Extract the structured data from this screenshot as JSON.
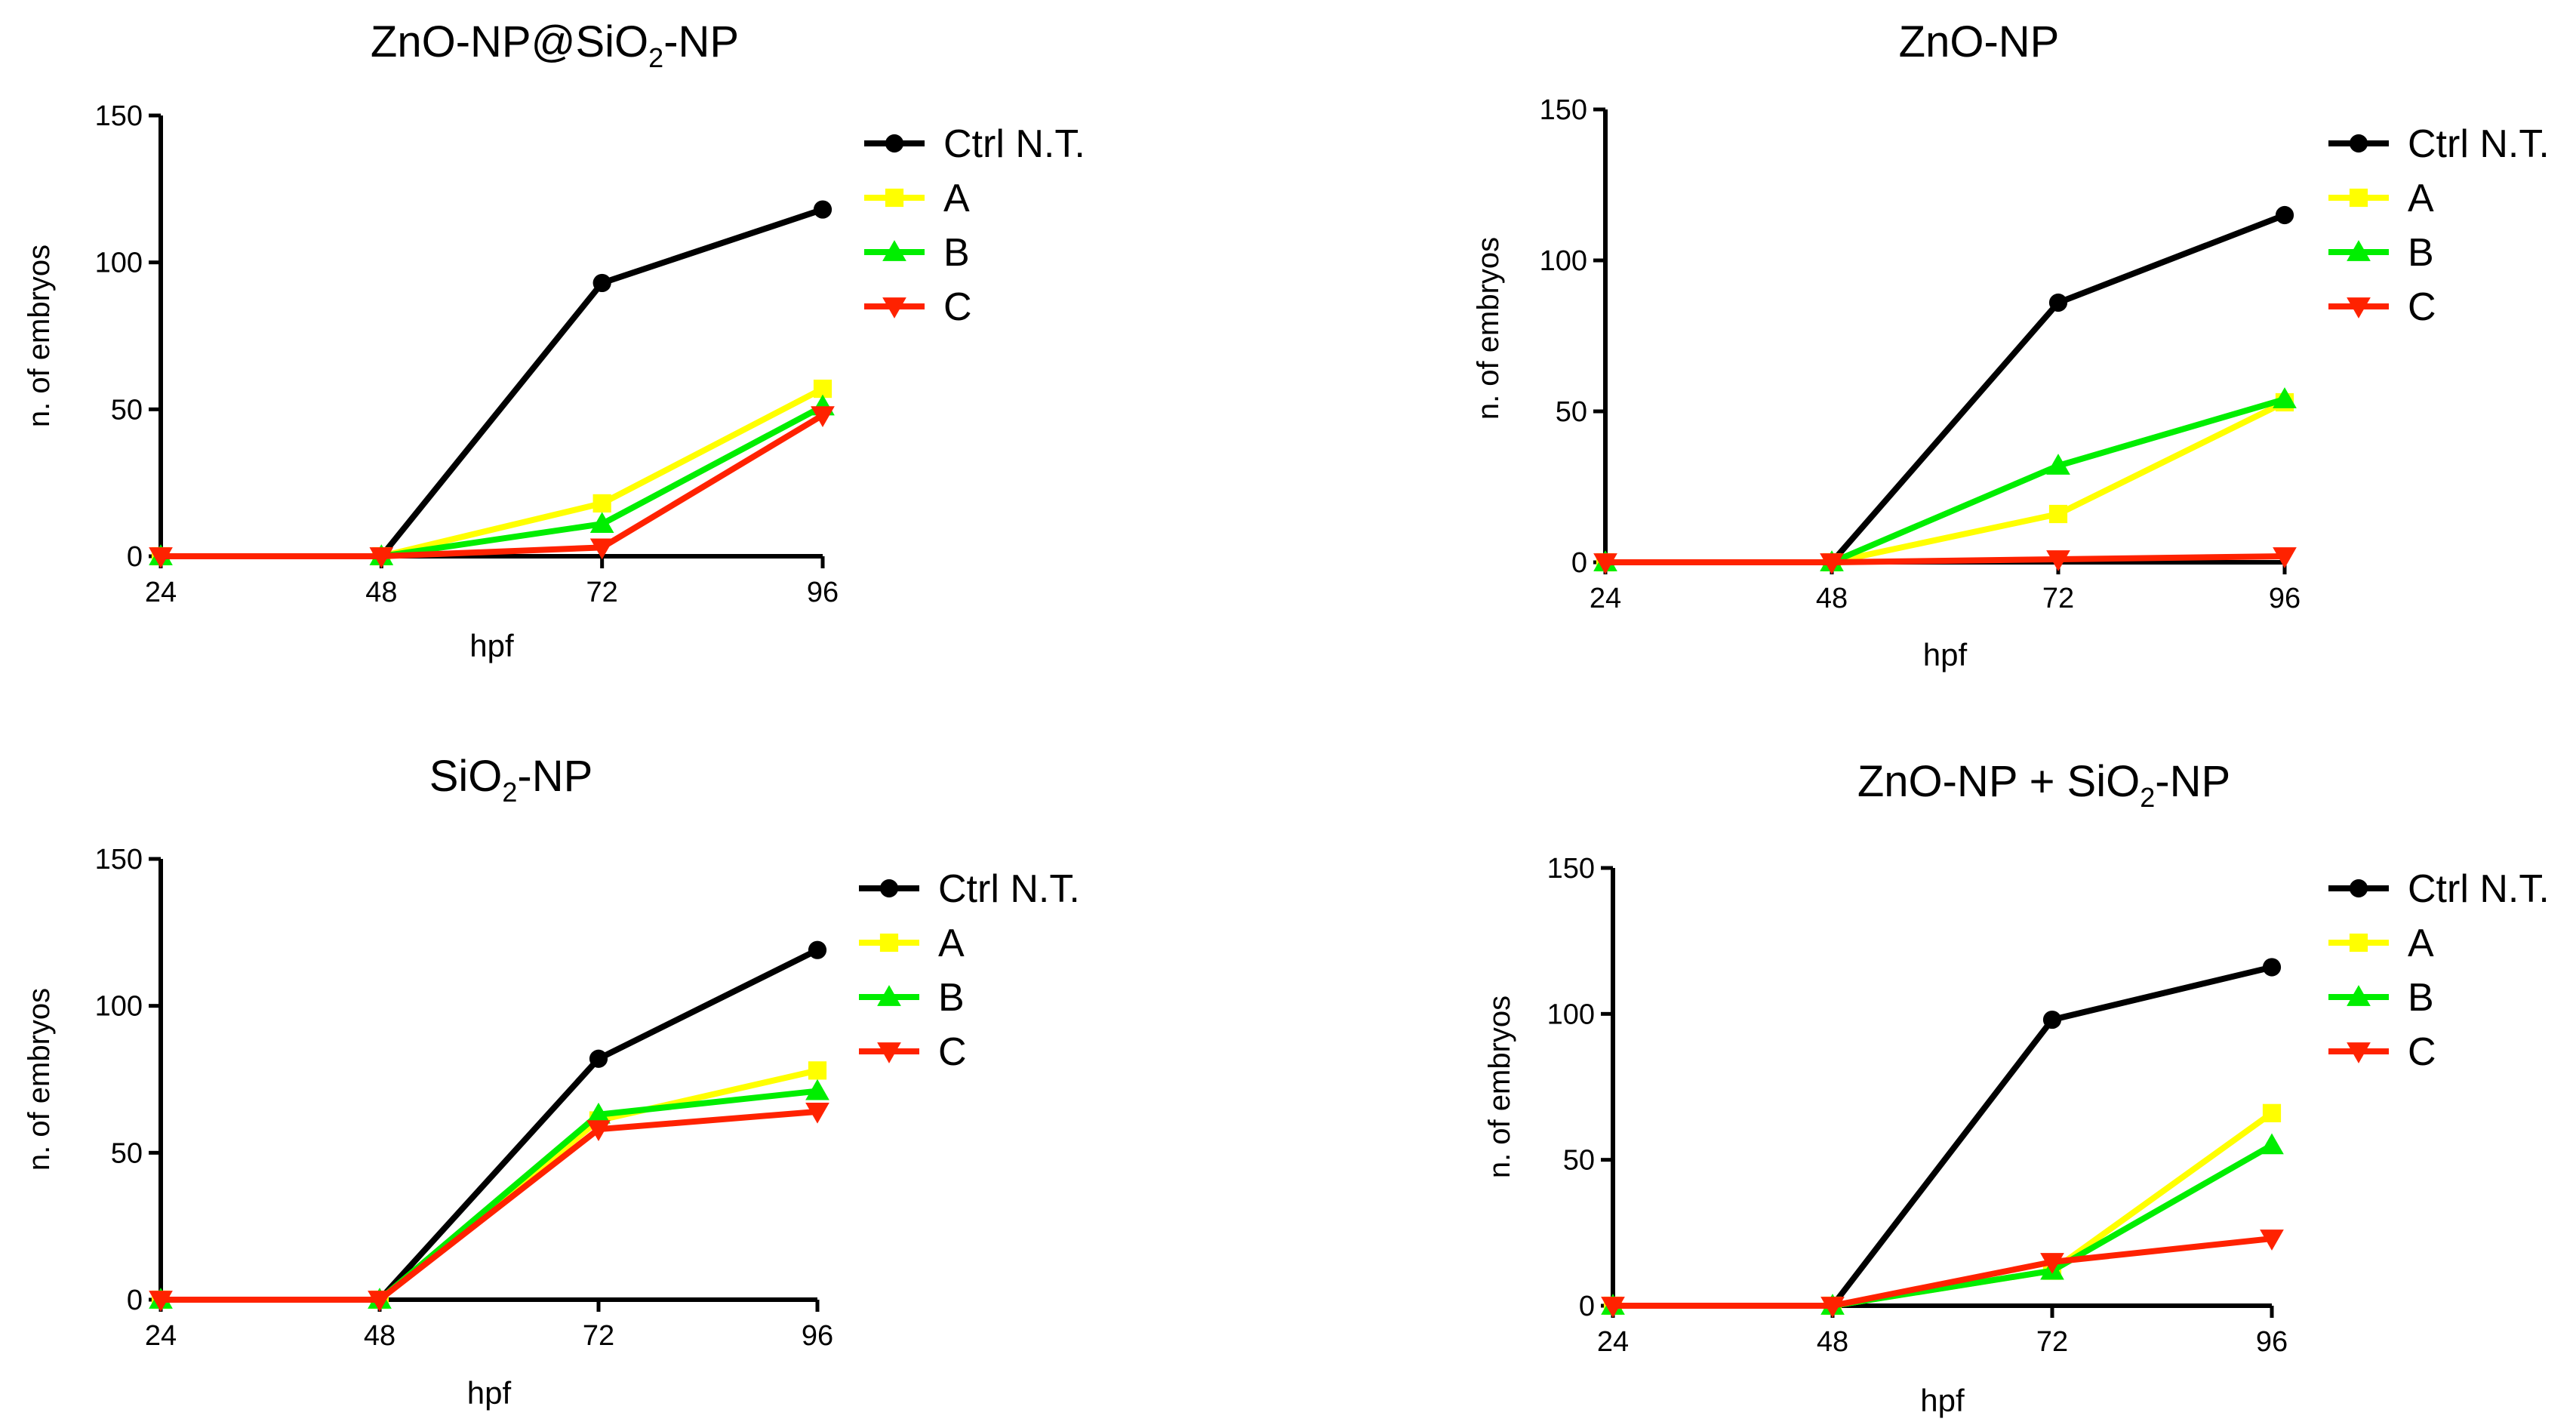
{
  "chart_data": [
    {
      "type": "line",
      "title": "ZnO-NP@SiO",
      "title_sub": "2",
      "title_suffix": "-NP",
      "xlabel": "hpf",
      "ylabel": "n. of embryos",
      "x": [
        24,
        48,
        72,
        96
      ],
      "x_ticks": [
        "24",
        "48",
        "72",
        "96"
      ],
      "ylim": [
        0,
        150
      ],
      "y_ticks": [
        "0",
        "50",
        "100",
        "150"
      ],
      "grid": false,
      "legend_position": "right",
      "series": [
        {
          "name": "Ctrl N.T.",
          "color": "#000000",
          "marker": "circle",
          "values": [
            0,
            0,
            93,
            118
          ]
        },
        {
          "name": "A",
          "color": "#ffff00",
          "marker": "square",
          "values": [
            0,
            0,
            18,
            57
          ]
        },
        {
          "name": "B",
          "color": "#00ee00",
          "marker": "triangle-up",
          "values": [
            0,
            0,
            11,
            51
          ]
        },
        {
          "name": "C",
          "color": "#ff2200",
          "marker": "triangle-down",
          "values": [
            0,
            0,
            3,
            48
          ]
        }
      ]
    },
    {
      "type": "line",
      "title": "ZnO-NP",
      "title_sub": "",
      "title_suffix": "",
      "xlabel": "hpf",
      "ylabel": "n. of embryos",
      "x": [
        24,
        48,
        72,
        96
      ],
      "x_ticks": [
        "24",
        "48",
        "72",
        "96"
      ],
      "ylim": [
        0,
        150
      ],
      "y_ticks": [
        "0",
        "50",
        "100",
        "150"
      ],
      "grid": false,
      "legend_position": "right",
      "series": [
        {
          "name": "Ctrl N.T.",
          "color": "#000000",
          "marker": "circle",
          "values": [
            0,
            0,
            86,
            115
          ]
        },
        {
          "name": "A",
          "color": "#ffff00",
          "marker": "square",
          "values": [
            0,
            0,
            16,
            53
          ]
        },
        {
          "name": "B",
          "color": "#00ee00",
          "marker": "triangle-up",
          "values": [
            0,
            0,
            32,
            54
          ]
        },
        {
          "name": "C",
          "color": "#ff2200",
          "marker": "triangle-down",
          "values": [
            0,
            0,
            1,
            2
          ]
        }
      ]
    },
    {
      "type": "line",
      "title": "SiO",
      "title_sub": "2",
      "title_suffix": "-NP",
      "xlabel": "hpf",
      "ylabel": "n. of embryos",
      "x": [
        24,
        48,
        72,
        96
      ],
      "x_ticks": [
        "24",
        "48",
        "72",
        "96"
      ],
      "ylim": [
        0,
        150
      ],
      "y_ticks": [
        "0",
        "50",
        "100",
        "150"
      ],
      "grid": false,
      "legend_position": "right",
      "series": [
        {
          "name": "Ctrl N.T.",
          "color": "#000000",
          "marker": "circle",
          "values": [
            0,
            0,
            82,
            119
          ]
        },
        {
          "name": "A",
          "color": "#ffff00",
          "marker": "square",
          "values": [
            0,
            0,
            61,
            78
          ]
        },
        {
          "name": "B",
          "color": "#00ee00",
          "marker": "triangle-up",
          "values": [
            0,
            0,
            63,
            71
          ]
        },
        {
          "name": "C",
          "color": "#ff2200",
          "marker": "triangle-down",
          "values": [
            0,
            0,
            58,
            64
          ]
        }
      ]
    },
    {
      "type": "line",
      "title": "ZnO-NP + SiO",
      "title_sub": "2",
      "title_suffix": "-NP",
      "xlabel": "hpf",
      "ylabel": "n. of embryos",
      "x": [
        24,
        48,
        72,
        96
      ],
      "x_ticks": [
        "24",
        "48",
        "72",
        "96"
      ],
      "ylim": [
        0,
        150
      ],
      "y_ticks": [
        "0",
        "50",
        "100",
        "150"
      ],
      "grid": false,
      "legend_position": "right",
      "series": [
        {
          "name": "Ctrl N.T.",
          "color": "#000000",
          "marker": "circle",
          "values": [
            0,
            0,
            98,
            116
          ]
        },
        {
          "name": "A",
          "color": "#ffff00",
          "marker": "square",
          "values": [
            0,
            0,
            12,
            66
          ]
        },
        {
          "name": "B",
          "color": "#00ee00",
          "marker": "triangle-up",
          "values": [
            0,
            0,
            12,
            55
          ]
        },
        {
          "name": "C",
          "color": "#ff2200",
          "marker": "triangle-down",
          "values": [
            0,
            0,
            15,
            23
          ]
        }
      ]
    }
  ]
}
